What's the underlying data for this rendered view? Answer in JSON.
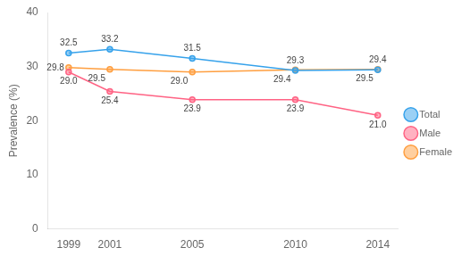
{
  "chart_data": {
    "type": "line",
    "x": [
      1999,
      2001,
      2005,
      2010,
      2014
    ],
    "series": [
      {
        "name": "Total",
        "values": [
          32.5,
          33.2,
          31.5,
          29.3,
          29.4
        ],
        "value_labels": [
          "32.5",
          "33.2",
          "31.5",
          "29.3",
          "29.4"
        ]
      },
      {
        "name": "Male",
        "values": [
          29.0,
          25.4,
          23.9,
          23.9,
          21.0
        ],
        "value_labels": [
          "29.0",
          "25.4",
          "23.9",
          "23.9",
          "21.0"
        ]
      },
      {
        "name": "Female",
        "values": [
          29.8,
          29.5,
          29.0,
          29.4,
          29.5
        ],
        "value_labels": [
          "29.8",
          "29.5",
          "29.0",
          "29.4",
          "29.5"
        ]
      }
    ],
    "ylabel": "Prevalence (%)",
    "xlim": [
      1998,
      2015
    ],
    "xticks": [
      1999,
      2001,
      2005,
      2010,
      2014
    ],
    "ylim": [
      0,
      40
    ],
    "yticks": [
      0,
      10,
      20,
      30,
      40
    ],
    "grid": false,
    "legend": "right",
    "data_labels": true,
    "marker": "circle"
  }
}
